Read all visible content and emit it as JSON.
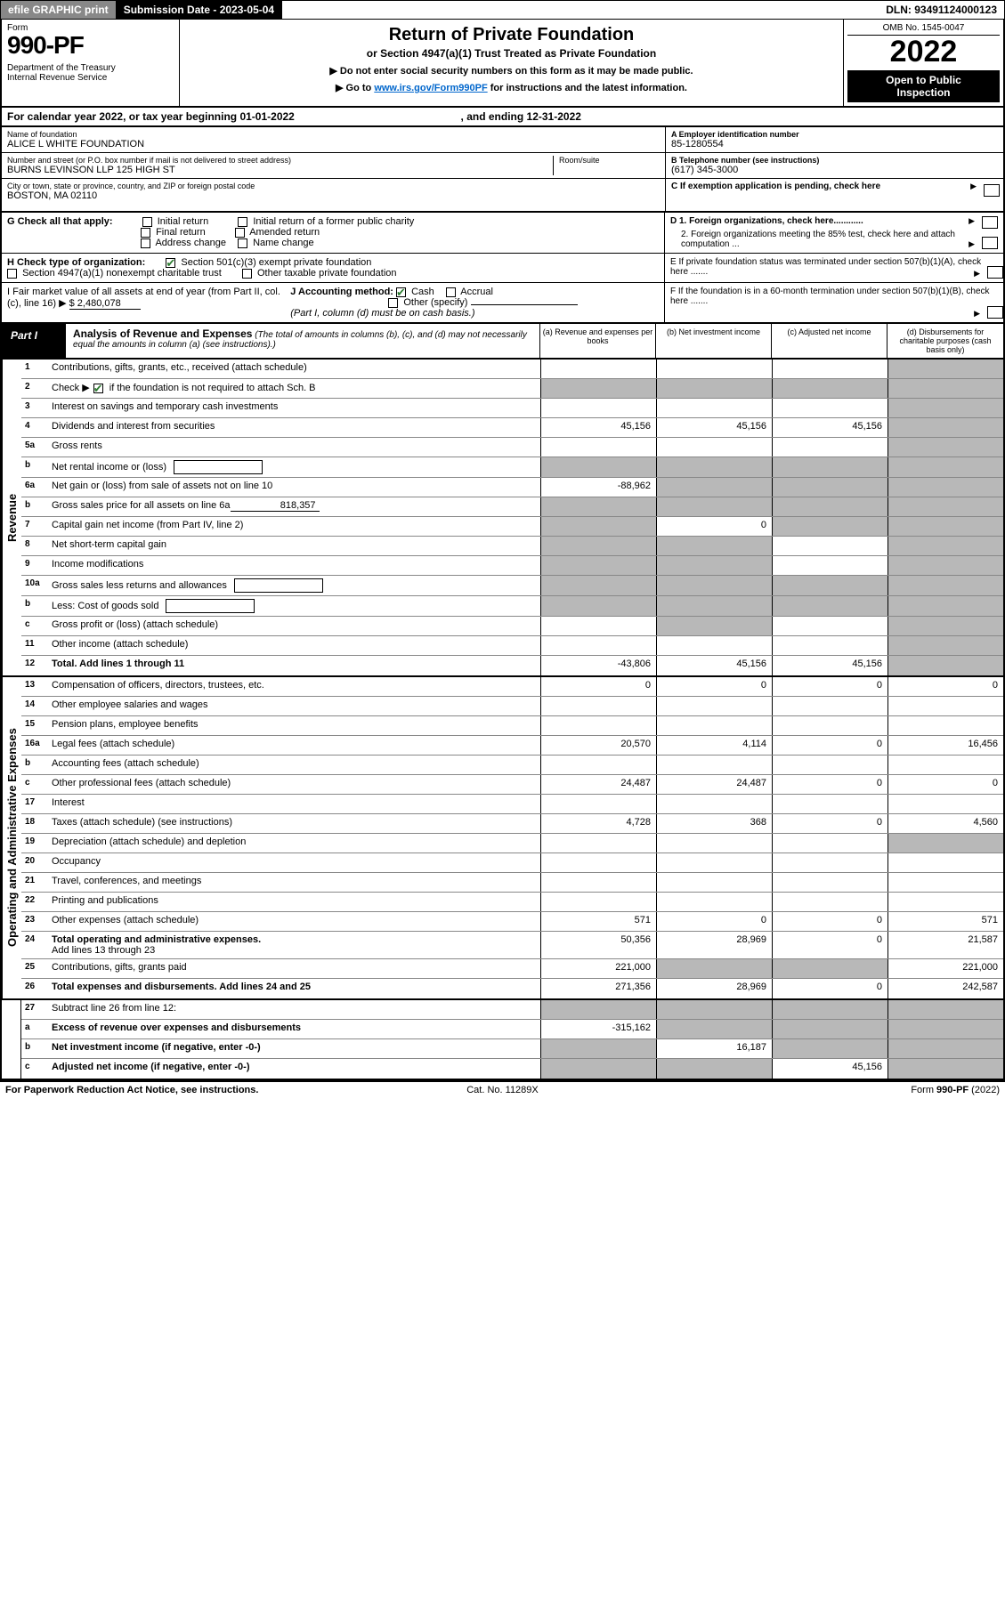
{
  "topbar": {
    "efile": "efile GRAPHIC print",
    "submission_label": "Submission Date - 2023-05-04",
    "dln": "DLN: 93491124000123"
  },
  "header": {
    "form_word": "Form",
    "form_no": "990-PF",
    "dept1": "Department of the Treasury",
    "dept2": "Internal Revenue Service",
    "title": "Return of Private Foundation",
    "subtitle": "or Section 4947(a)(1) Trust Treated as Private Foundation",
    "inst1": "▶ Do not enter social security numbers on this form as it may be made public.",
    "inst2_pre": "▶ Go to ",
    "inst2_link": "www.irs.gov/Form990PF",
    "inst2_post": " for instructions and the latest information.",
    "omb": "OMB No. 1545-0047",
    "year": "2022",
    "open1": "Open to Public",
    "open2": "Inspection"
  },
  "cal_year": {
    "pre": "For calendar year 2022, or tax year beginning ",
    "begin": "01-01-2022",
    "mid": " , and ending ",
    "end": "12-31-2022"
  },
  "info": {
    "name_lbl": "Name of foundation",
    "name_val": "ALICE L WHITE FOUNDATION",
    "addr_lbl": "Number and street (or P.O. box number if mail is not delivered to street address)",
    "addr_val": "BURNS LEVINSON LLP 125 HIGH ST",
    "room_lbl": "Room/suite",
    "city_lbl": "City or town, state or province, country, and ZIP or foreign postal code",
    "city_val": "BOSTON, MA  02110",
    "a_lbl": "A Employer identification number",
    "a_val": "85-1280554",
    "b_lbl": "B Telephone number (see instructions)",
    "b_val": "(617) 345-3000",
    "c_lbl": "C If exemption application is pending, check here",
    "d1": "D 1. Foreign organizations, check here............",
    "d2": "2. Foreign organizations meeting the 85% test, check here and attach computation ...",
    "e": "E  If private foundation status was terminated under section 507(b)(1)(A), check here .......",
    "f": "F  If the foundation is in a 60-month termination under section 507(b)(1)(B), check here .......",
    "g_lbl": "G Check all that apply:",
    "g_opts": [
      "Initial return",
      "Final return",
      "Address change",
      "Initial return of a former public charity",
      "Amended return",
      "Name change"
    ],
    "h_lbl": "H Check type of organization:",
    "h_501": "Section 501(c)(3) exempt private foundation",
    "h_4947": "Section 4947(a)(1) nonexempt charitable trust",
    "h_other": "Other taxable private foundation",
    "i_lbl": "I Fair market value of all assets at end of year (from Part II, col. (c), line 16) ▶",
    "i_val": "$  2,480,078",
    "j_lbl": "J Accounting method:",
    "j_cash": "Cash",
    "j_accr": "Accrual",
    "j_other": "Other (specify)",
    "j_note": "(Part I, column (d) must be on cash basis.)"
  },
  "part1": {
    "label": "Part I",
    "title": "Analysis of Revenue and Expenses",
    "title_note": " (The total of amounts in columns (b), (c), and (d) may not necessarily equal the amounts in column (a) (see instructions).)",
    "col_a": "(a)  Revenue and expenses per books",
    "col_b": "(b)  Net investment income",
    "col_c": "(c)  Adjusted net income",
    "col_d": "(d)  Disbursements for charitable purposes (cash basis only)"
  },
  "side": {
    "revenue": "Revenue",
    "expenses": "Operating and Administrative Expenses"
  },
  "rows": {
    "r1": {
      "n": "1",
      "d": "Contributions, gifts, grants, etc., received (attach schedule)"
    },
    "r2": {
      "n": "2",
      "d_pre": "Check ▶",
      "d_post": " if the foundation is not required to attach Sch. B"
    },
    "r3": {
      "n": "3",
      "d": "Interest on savings and temporary cash investments"
    },
    "r4": {
      "n": "4",
      "d": "Dividends and interest from securities",
      "a": "45,156",
      "b": "45,156",
      "c": "45,156"
    },
    "r5a": {
      "n": "5a",
      "d": "Gross rents"
    },
    "r5b": {
      "n": "b",
      "d": "Net rental income or (loss)"
    },
    "r6a": {
      "n": "6a",
      "d": "Net gain or (loss) from sale of assets not on line 10",
      "a": "-88,962"
    },
    "r6b": {
      "n": "b",
      "d_pre": "Gross sales price for all assets on line 6a",
      "inline": "818,357"
    },
    "r7": {
      "n": "7",
      "d": "Capital gain net income (from Part IV, line 2)",
      "b": "0"
    },
    "r8": {
      "n": "8",
      "d": "Net short-term capital gain"
    },
    "r9": {
      "n": "9",
      "d": "Income modifications"
    },
    "r10a": {
      "n": "10a",
      "d": "Gross sales less returns and allowances"
    },
    "r10b": {
      "n": "b",
      "d": "Less: Cost of goods sold"
    },
    "r10c": {
      "n": "c",
      "d": "Gross profit or (loss) (attach schedule)"
    },
    "r11": {
      "n": "11",
      "d": "Other income (attach schedule)"
    },
    "r12": {
      "n": "12",
      "d": "Total. Add lines 1 through 11",
      "a": "-43,806",
      "b": "45,156",
      "c": "45,156",
      "bold": true
    },
    "r13": {
      "n": "13",
      "d": "Compensation of officers, directors, trustees, etc.",
      "a": "0",
      "b": "0",
      "c": "0",
      "dd": "0"
    },
    "r14": {
      "n": "14",
      "d": "Other employee salaries and wages"
    },
    "r15": {
      "n": "15",
      "d": "Pension plans, employee benefits"
    },
    "r16a": {
      "n": "16a",
      "d": "Legal fees (attach schedule)",
      "a": "20,570",
      "b": "4,114",
      "c": "0",
      "dd": "16,456"
    },
    "r16b": {
      "n": "b",
      "d": "Accounting fees (attach schedule)"
    },
    "r16c": {
      "n": "c",
      "d": "Other professional fees (attach schedule)",
      "a": "24,487",
      "b": "24,487",
      "c": "0",
      "dd": "0"
    },
    "r17": {
      "n": "17",
      "d": "Interest"
    },
    "r18": {
      "n": "18",
      "d": "Taxes (attach schedule) (see instructions)",
      "a": "4,728",
      "b": "368",
      "c": "0",
      "dd": "4,560"
    },
    "r19": {
      "n": "19",
      "d": "Depreciation (attach schedule) and depletion"
    },
    "r20": {
      "n": "20",
      "d": "Occupancy"
    },
    "r21": {
      "n": "21",
      "d": "Travel, conferences, and meetings"
    },
    "r22": {
      "n": "22",
      "d": "Printing and publications"
    },
    "r23": {
      "n": "23",
      "d": "Other expenses (attach schedule)",
      "a": "571",
      "b": "0",
      "c": "0",
      "dd": "571"
    },
    "r24": {
      "n": "24",
      "d": "Total operating and administrative expenses.",
      "d2": "Add lines 13 through 23",
      "a": "50,356",
      "b": "28,969",
      "c": "0",
      "dd": "21,587",
      "bold": true
    },
    "r25": {
      "n": "25",
      "d": "Contributions, gifts, grants paid",
      "a": "221,000",
      "dd": "221,000"
    },
    "r26": {
      "n": "26",
      "d": "Total expenses and disbursements. Add lines 24 and 25",
      "a": "271,356",
      "b": "28,969",
      "c": "0",
      "dd": "242,587",
      "bold": true
    },
    "r27": {
      "n": "27",
      "d": "Subtract line 26 from line 12:"
    },
    "r27a": {
      "n": "a",
      "d": "Excess of revenue over expenses and disbursements",
      "a": "-315,162",
      "bold": true
    },
    "r27b": {
      "n": "b",
      "d": "Net investment income (if negative, enter -0-)",
      "b": "16,187",
      "bold": true
    },
    "r27c": {
      "n": "c",
      "d": "Adjusted net income (if negative, enter -0-)",
      "c": "45,156",
      "bold": true
    }
  },
  "shading": {
    "r1": [
      "d"
    ],
    "r2": [
      "a",
      "b",
      "c",
      "d"
    ],
    "r3": [
      "d"
    ],
    "r4": [
      "d"
    ],
    "r5a": [
      "d"
    ],
    "r5b": [
      "a",
      "b",
      "c",
      "d"
    ],
    "r6a": [
      "b",
      "c",
      "d"
    ],
    "r6b": [
      "a",
      "b",
      "c",
      "d"
    ],
    "r7": [
      "a",
      "c",
      "d"
    ],
    "r8": [
      "a",
      "b",
      "d"
    ],
    "r9": [
      "a",
      "b",
      "d"
    ],
    "r10a": [
      "a",
      "b",
      "c",
      "d"
    ],
    "r10b": [
      "a",
      "b",
      "c",
      "d"
    ],
    "r10c": [
      "b",
      "d"
    ],
    "r11": [
      "d"
    ],
    "r12": [
      "d"
    ],
    "r19": [
      "d"
    ],
    "r24": [],
    "r25": [
      "b",
      "c"
    ],
    "r27": [
      "a",
      "b",
      "c",
      "d"
    ],
    "r27a": [
      "b",
      "c",
      "d"
    ],
    "r27b": [
      "a",
      "c",
      "d"
    ],
    "r27c": [
      "a",
      "b",
      "d"
    ]
  },
  "footer": {
    "left": "For Paperwork Reduction Act Notice, see instructions.",
    "center": "Cat. No. 11289X",
    "right": "Form 990-PF (2022)"
  },
  "colors": {
    "shade": "#b8b8b8",
    "link": "#0066cc",
    "check_green": "#2e7d32"
  }
}
